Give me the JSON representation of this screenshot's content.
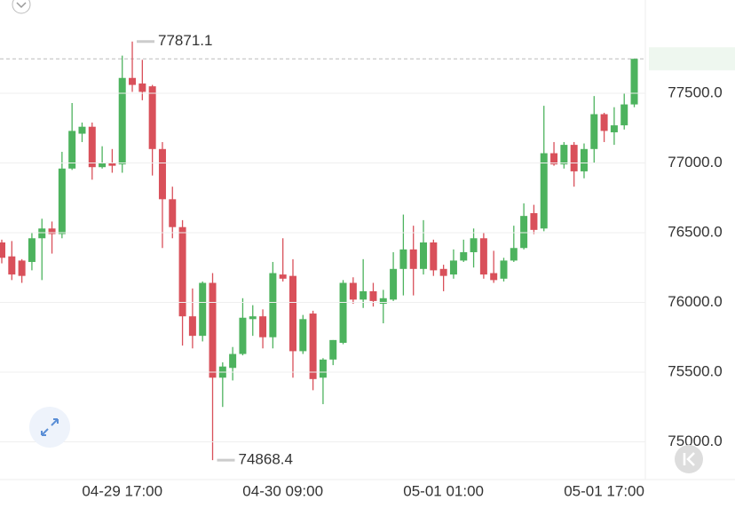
{
  "chart_data": {
    "type": "candlestick",
    "categories": [
      null,
      null,
      null,
      null,
      null,
      null,
      null,
      null,
      null,
      null,
      null,
      null,
      "04-29 17:00",
      null,
      null,
      null,
      null,
      null,
      null,
      null,
      null,
      null,
      null,
      null,
      null,
      null,
      null,
      null,
      "04-30 09:00",
      null,
      null,
      null,
      null,
      null,
      null,
      null,
      null,
      null,
      null,
      null,
      null,
      null,
      null,
      null,
      "05-01 01:00",
      null,
      null,
      null,
      null,
      null,
      null,
      null,
      null,
      null,
      null,
      null,
      null,
      null,
      null,
      null,
      "05-01 17:00",
      null,
      null,
      null
    ],
    "open": [
      76430,
      76330,
      76300,
      76290,
      76460,
      76530,
      76490,
      76960,
      77210,
      77260,
      76970,
      77000,
      76990,
      77610,
      77570,
      77550,
      77100,
      76740,
      76540,
      75900,
      75760,
      76140,
      75460,
      75530,
      75630,
      75880,
      75900,
      75750,
      76200,
      76190,
      75650,
      75920,
      75460,
      75590,
      75710,
      76140,
      76020,
      76080,
      75990,
      76020,
      76240,
      76380,
      76240,
      76430,
      76240,
      76200,
      76300,
      76360,
      76460,
      76210,
      76170,
      76300,
      76390,
      76640,
      76530,
      77070,
      76990,
      77130,
      76940,
      77100,
      77350,
      77220,
      77270,
      77420
    ],
    "high": [
      76450,
      76440,
      76310,
      76500,
      76600,
      76580,
      77080,
      77430,
      77290,
      77290,
      77120,
      77100,
      77770,
      77871.1,
      77740,
      77560,
      77150,
      76830,
      76590,
      76100,
      76150,
      76210,
      75570,
      75680,
      76030,
      75980,
      75950,
      76290,
      76460,
      76310,
      75910,
      75940,
      75600,
      75730,
      76160,
      76180,
      76310,
      76140,
      76090,
      76360,
      76630,
      76550,
      76590,
      76450,
      76270,
      76380,
      76450,
      76530,
      76500,
      76370,
      76320,
      76550,
      76710,
      76700,
      77410,
      77150,
      77150,
      77150,
      77140,
      77480,
      77360,
      77400,
      77500,
      77747.1
    ],
    "low": [
      76280,
      76160,
      76140,
      76230,
      76160,
      76350,
      76460,
      76950,
      77150,
      76880,
      76960,
      76930,
      76930,
      77510,
      77450,
      76910,
      76390,
      76460,
      75690,
      75670,
      75720,
      74868.4,
      75250,
      75440,
      75620,
      75760,
      75670,
      75670,
      76150,
      75460,
      75630,
      75370,
      75270,
      75550,
      75700,
      75990,
      75960,
      75970,
      75850,
      76010,
      76050,
      76050,
      76200,
      76190,
      76080,
      76170,
      76290,
      76250,
      76170,
      76140,
      76150,
      76290,
      76380,
      76490,
      76510,
      76980,
      76960,
      76830,
      76890,
      77000,
      77150,
      77130,
      77240,
      77400
    ],
    "close": [
      76320,
      76200,
      76190,
      76460,
      76530,
      76490,
      76960,
      77230,
      77260,
      76970,
      77000,
      76980,
      77610,
      77560,
      77510,
      77100,
      76740,
      76540,
      75900,
      75760,
      76140,
      75460,
      75540,
      75630,
      75890,
      75900,
      75750,
      76210,
      76170,
      75650,
      75880,
      75450,
      75590,
      75730,
      76140,
      76020,
      76080,
      76010,
      76030,
      76240,
      76380,
      76240,
      76430,
      76230,
      76190,
      76300,
      76360,
      76460,
      76200,
      76160,
      76300,
      76390,
      76620,
      76520,
      77070,
      76990,
      77130,
      76940,
      77100,
      77350,
      77230,
      77270,
      77420,
      77747.1
    ],
    "up_color": "#4db35e",
    "down_color": "#d9505a",
    "ylim": [
      74729,
      78169
    ],
    "yticks": [
      {
        "value": 75000,
        "label": "75000.0"
      },
      {
        "value": 75500,
        "label": "75500.0"
      },
      {
        "value": 76000,
        "label": "76000.0"
      },
      {
        "value": 76500,
        "label": "76500.0"
      },
      {
        "value": 77000,
        "label": "77000.0"
      },
      {
        "value": 77500,
        "label": "77500.0"
      }
    ],
    "grid": true
  }
}
